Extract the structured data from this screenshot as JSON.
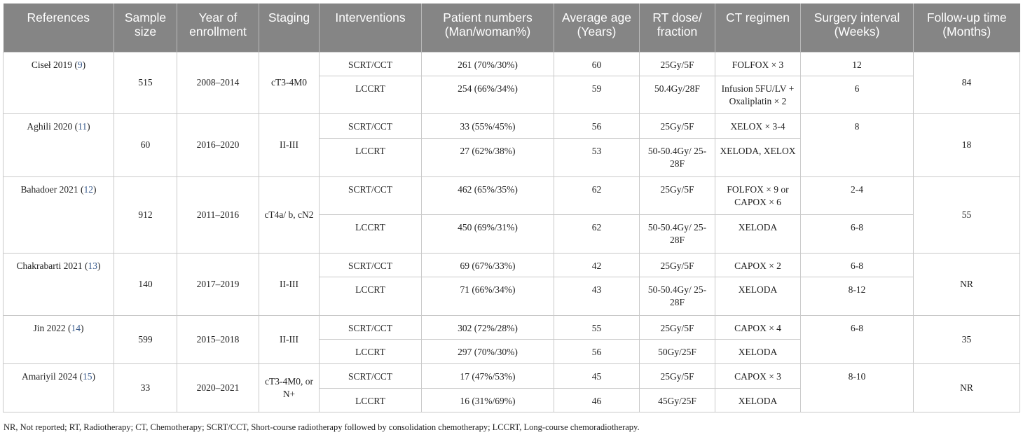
{
  "headers": [
    "References",
    "Sample size",
    "Year of enrollment",
    "Staging",
    "Interventions",
    "Patient numbers (Man/woman%)",
    "Average age (Years)",
    "RT dose/ fraction",
    "CT regimen",
    "Surgery interval (Weeks)",
    "Follow-up time (Months)"
  ],
  "studies": [
    {
      "ref": "Ciseł 2019",
      "ref_num": "9",
      "sample": "515",
      "year": "2008–2014",
      "staging": "cT3-4M0",
      "followup": "84",
      "arms": [
        {
          "intervention": "SCRT/CCT",
          "patients": "261 (70%/30%)",
          "age": "60",
          "dose": "25Gy/5F",
          "regimen": "FOLFOX × 3",
          "interval": "12"
        },
        {
          "intervention": "LCCRT",
          "patients": "254 (66%/34%)",
          "age": "59",
          "dose": "50.4Gy/28F",
          "regimen": "Infusion 5FU/LV + Oxaliplatin × 2",
          "interval": "6"
        }
      ]
    },
    {
      "ref": "Aghili 2020",
      "ref_num": "11",
      "sample": "60",
      "year": "2016–2020",
      "staging": "II-III",
      "followup": "18",
      "interval_shared": "8",
      "arms": [
        {
          "intervention": "SCRT/CCT",
          "patients": "33 (55%/45%)",
          "age": "56",
          "dose": "25Gy/5F",
          "regimen": "XELOX × 3-4"
        },
        {
          "intervention": "LCCRT",
          "patients": "27 (62%/38%)",
          "age": "53",
          "dose": "50-50.4Gy/ 25-28F",
          "regimen": "XELODA, XELOX"
        }
      ]
    },
    {
      "ref": "Bahadoer 2021",
      "ref_num": "12",
      "sample": "912",
      "year": "2011–2016",
      "staging": "cT4a/ b, cN2",
      "followup": "55",
      "arms": [
        {
          "intervention": "SCRT/CCT",
          "patients": "462 (65%/35%)",
          "age": "62",
          "dose": "25Gy/5F",
          "regimen": "FOLFOX × 9 or CAPOX × 6",
          "interval": "2-4"
        },
        {
          "intervention": "LCCRT",
          "patients": "450 (69%/31%)",
          "age": "62",
          "dose": "50-50.4Gy/ 25-28F",
          "regimen": "XELODA",
          "interval": "6-8"
        }
      ]
    },
    {
      "ref": "Chakrabarti 2021",
      "ref_num": "13",
      "sample": "140",
      "year": "2017–2019",
      "staging": "II-III",
      "followup": "NR",
      "arms": [
        {
          "intervention": "SCRT/CCT",
          "patients": "69 (67%/33%)",
          "age": "42",
          "dose": "25Gy/5F",
          "regimen": "CAPOX × 2",
          "interval": "6-8"
        },
        {
          "intervention": "LCCRT",
          "patients": "71 (66%/34%)",
          "age": "43",
          "dose": "50-50.4Gy/ 25-28F",
          "regimen": "XELODA",
          "interval": "8-12"
        }
      ]
    },
    {
      "ref": "Jin 2022",
      "ref_num": "14",
      "sample": "599",
      "year": "2015–2018",
      "staging": "II-III",
      "followup": "35",
      "interval_shared": "6-8",
      "arms": [
        {
          "intervention": "SCRT/CCT",
          "patients": "302 (72%/28%)",
          "age": "55",
          "dose": "25Gy/5F",
          "regimen": "CAPOX × 4"
        },
        {
          "intervention": "LCCRT",
          "patients": "297 (70%/30%)",
          "age": "56",
          "dose": "50Gy/25F",
          "regimen": "XELODA"
        }
      ]
    },
    {
      "ref": "Amariyil 2024",
      "ref_num": "15",
      "sample": "33",
      "year": "2020–2021",
      "staging": "cT3-4M0, or N+",
      "followup": "NR",
      "interval_shared": "8-10",
      "arms": [
        {
          "intervention": "SCRT/CCT",
          "patients": "17 (47%/53%)",
          "age": "45",
          "dose": "25Gy/5F",
          "regimen": "CAPOX × 3"
        },
        {
          "intervention": "LCCRT",
          "patients": "16 (31%/69%)",
          "age": "46",
          "dose": "45Gy/25F",
          "regimen": "XELODA"
        }
      ]
    }
  ],
  "footnote": "NR, Not reported; RT, Radiotherapy; CT, Chemotherapy; SCRT/CCT, Short-course radiotherapy followed by consolidation chemotherapy; LCCRT, Long-course chemoradiotherapy."
}
